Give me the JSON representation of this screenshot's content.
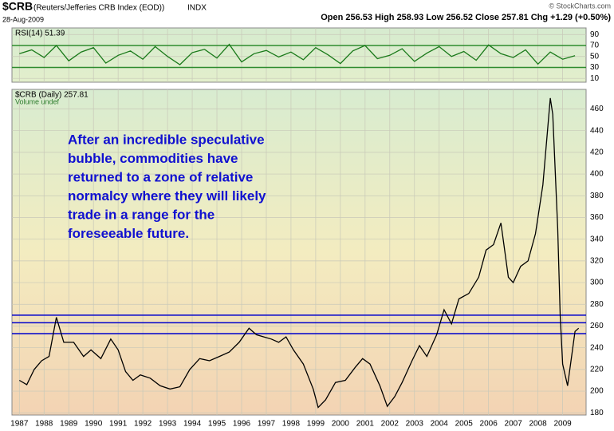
{
  "header": {
    "title": "$CRB",
    "subtitle": "(Reuters/Jefferies CRB Index (EOD))",
    "exchange": "INDX",
    "date": "28-Aug-2009",
    "quote": "Open 256.53  High 258.93  Low 256.52  Close 257.81  Chg +1.29 (+0.50%)",
    "credit": "© StockCharts.com"
  },
  "chart_data": [
    {
      "type": "line",
      "legend": "RSI(14) 51.39",
      "color": "#1a7a1a",
      "x": [
        1987,
        1987.5,
        1988,
        1988.5,
        1989,
        1989.5,
        1990,
        1990.5,
        1991,
        1991.5,
        1992,
        1992.5,
        1993,
        1993.5,
        1994,
        1994.5,
        1995,
        1995.5,
        1996,
        1996.5,
        1997,
        1997.5,
        1998,
        1998.5,
        1999,
        1999.5,
        2000,
        2000.5,
        2001,
        2001.5,
        2002,
        2002.5,
        2003,
        2003.5,
        2004,
        2004.5,
        2005,
        2005.5,
        2006,
        2006.5,
        2007,
        2007.5,
        2008,
        2008.5,
        2009,
        2009.5
      ],
      "values": [
        55,
        62,
        48,
        70,
        42,
        58,
        66,
        38,
        52,
        60,
        45,
        68,
        50,
        35,
        57,
        63,
        47,
        72,
        40,
        55,
        61,
        49,
        58,
        44,
        66,
        53,
        37,
        60,
        70,
        46,
        52,
        64,
        41,
        56,
        68,
        50,
        59,
        43,
        71,
        55,
        48,
        62,
        36,
        58,
        45,
        51.39
      ],
      "xlim": [
        1986.7,
        2009.95
      ],
      "xticks": [
        1987,
        1988,
        1989,
        1990,
        1991,
        1992,
        1993,
        1994,
        1995,
        1996,
        1997,
        1998,
        1999,
        2000,
        2001,
        2002,
        2003,
        2004,
        2005,
        2006,
        2007,
        2008,
        2009
      ],
      "ylim": [
        3,
        102
      ],
      "yticks": [
        10,
        30,
        50,
        70,
        90
      ],
      "reference_lines": [
        70,
        30
      ],
      "reference_color": "#2e8b2e",
      "grid": true
    },
    {
      "type": "line",
      "legend": "$CRB (Daily) 257.81",
      "legend_extra": "Volume undef",
      "color": "#000000",
      "annotation": [
        "After an incredible speculative",
        "bubble, commodities have",
        "returned to a zone of relative",
        "normalcy where they will likely",
        "trade in a range for the",
        "foreseeable future."
      ],
      "x": [
        1987.0,
        1987.3,
        1987.6,
        1987.9,
        1988.2,
        1988.5,
        1988.8,
        1989.2,
        1989.6,
        1989.9,
        1990.3,
        1990.7,
        1991.0,
        1991.3,
        1991.6,
        1991.9,
        1992.3,
        1992.7,
        1993.1,
        1993.5,
        1993.9,
        1994.3,
        1994.7,
        1995.1,
        1995.5,
        1995.9,
        1996.3,
        1996.6,
        1996.9,
        1997.2,
        1997.5,
        1997.8,
        1998.1,
        1998.5,
        1998.9,
        1999.1,
        1999.4,
        1999.8,
        2000.2,
        2000.6,
        2000.9,
        2001.2,
        2001.6,
        2001.9,
        2002.2,
        2002.5,
        2002.9,
        2003.2,
        2003.5,
        2003.9,
        2004.2,
        2004.5,
        2004.8,
        2005.2,
        2005.6,
        2005.9,
        2006.2,
        2006.5,
        2006.8,
        2007.0,
        2007.3,
        2007.6,
        2007.9,
        2008.2,
        2008.5,
        2008.6,
        2008.8,
        2008.9,
        2009.0,
        2009.2,
        2009.5,
        2009.65
      ],
      "values": [
        210,
        206,
        220,
        228,
        232,
        268,
        245,
        245,
        232,
        238,
        230,
        248,
        238,
        218,
        210,
        215,
        212,
        205,
        202,
        204,
        220,
        230,
        228,
        232,
        236,
        245,
        258,
        252,
        250,
        248,
        245,
        250,
        238,
        225,
        202,
        185,
        192,
        208,
        210,
        222,
        230,
        225,
        205,
        186,
        195,
        208,
        228,
        242,
        232,
        252,
        275,
        262,
        285,
        290,
        305,
        330,
        335,
        355,
        305,
        300,
        315,
        320,
        345,
        390,
        470,
        455,
        350,
        270,
        225,
        205,
        255,
        258
      ],
      "xlim": [
        1986.7,
        2009.95
      ],
      "xticks": [
        1987,
        1988,
        1989,
        1990,
        1991,
        1992,
        1993,
        1994,
        1995,
        1996,
        1997,
        1998,
        1999,
        2000,
        2001,
        2002,
        2003,
        2004,
        2005,
        2006,
        2007,
        2008,
        2009
      ],
      "ylim": [
        178,
        478
      ],
      "yticks": [
        180,
        200,
        220,
        240,
        260,
        280,
        300,
        320,
        340,
        360,
        380,
        400,
        420,
        440,
        460
      ],
      "reference_lines": [
        270,
        263,
        253
      ],
      "reference_color": "#0000cc",
      "grid": true
    }
  ]
}
